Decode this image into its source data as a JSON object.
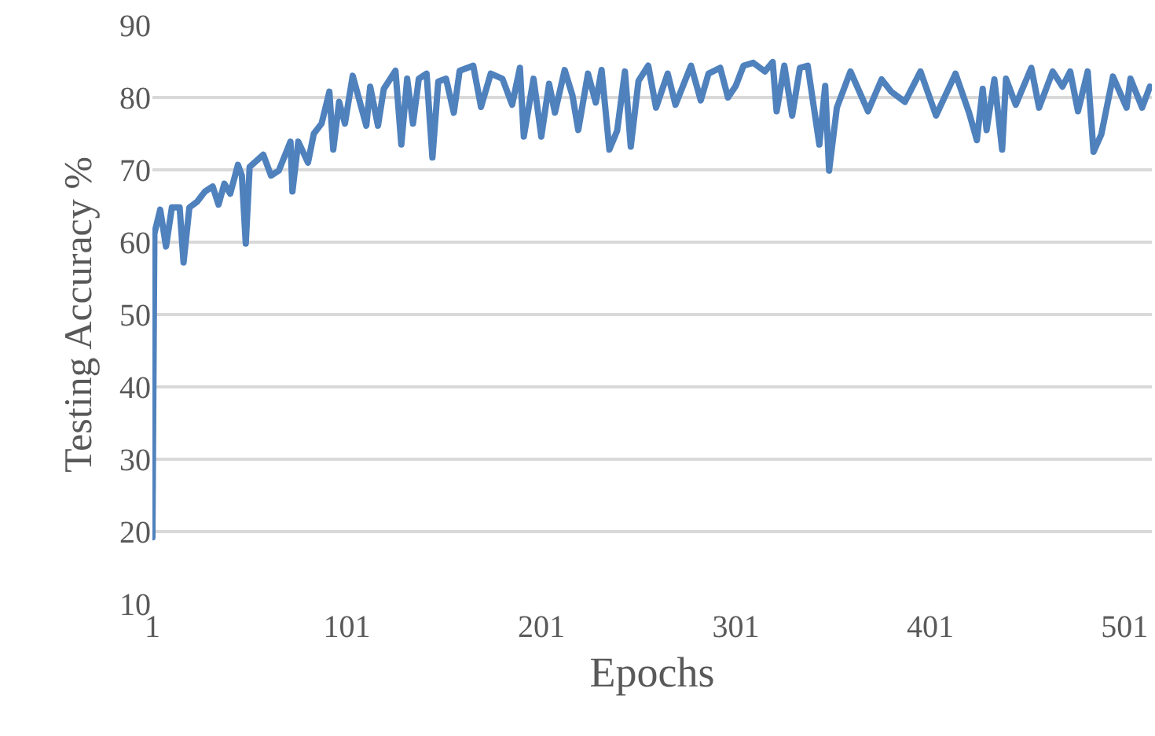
{
  "chart_data": {
    "type": "line",
    "xlabel": "Epochs",
    "ylabel": "Testing Accuracy %",
    "xlim": [
      1,
      515
    ],
    "xticks": [
      1,
      101,
      201,
      301,
      401,
      501
    ],
    "ylim": [
      10,
      90
    ],
    "yticks": [
      10,
      20,
      30,
      40,
      50,
      60,
      70,
      80,
      90
    ],
    "grid": "y",
    "marker": "none",
    "line_style": "solid",
    "series": [
      {
        "color": "#4f81bd",
        "x": [
          1,
          2,
          5,
          8,
          11,
          15,
          17,
          20,
          24,
          28,
          32,
          35,
          38,
          41,
          45,
          47,
          49,
          51,
          58,
          62,
          66,
          72,
          73,
          76,
          81,
          84,
          88,
          92,
          94,
          97,
          100,
          104,
          111,
          113,
          117,
          120,
          126,
          129,
          132,
          135,
          138,
          142,
          145,
          148,
          152,
          156,
          159,
          166,
          170,
          175,
          181,
          186,
          190,
          192,
          197,
          201,
          205,
          208,
          213,
          217,
          220,
          225,
          229,
          232,
          236,
          240,
          244,
          247,
          251,
          256,
          260,
          266,
          270,
          278,
          283,
          287,
          293,
          297,
          301,
          305,
          310,
          316,
          320,
          322,
          326,
          330,
          334,
          338,
          344,
          347,
          349,
          353,
          360,
          369,
          376,
          381,
          388,
          396,
          404,
          414,
          421,
          425,
          428,
          430,
          434,
          438,
          440,
          445,
          453,
          457,
          464,
          469,
          473,
          477,
          482,
          485,
          489,
          495,
          502,
          504,
          510,
          514
        ],
        "values": [
          19.2,
          61.2,
          64.5,
          59.4,
          64.8,
          64.8,
          57.2,
          64.8,
          65.6,
          67.0,
          67.7,
          65.2,
          68.1,
          66.7,
          70.7,
          69.2,
          59.8,
          70.4,
          72.1,
          69.2,
          69.9,
          73.9,
          67.0,
          73.9,
          71.0,
          75.0,
          76.4,
          80.8,
          72.8,
          79.4,
          76.4,
          83.0,
          76.1,
          81.5,
          76.1,
          81.2,
          83.7,
          73.5,
          82.6,
          76.4,
          82.6,
          83.3,
          71.7,
          82.2,
          82.6,
          77.9,
          83.7,
          84.4,
          78.7,
          83.3,
          82.6,
          79.0,
          84.1,
          74.6,
          82.6,
          74.6,
          81.9,
          77.9,
          83.8,
          80.3,
          75.5,
          83.3,
          79.3,
          83.8,
          72.8,
          75.4,
          83.6,
          73.2,
          82.3,
          84.4,
          78.6,
          83.3,
          79.0,
          84.4,
          79.6,
          83.3,
          84.1,
          80.0,
          81.6,
          84.4,
          84.8,
          83.6,
          84.9,
          78.1,
          84.4,
          77.5,
          84.1,
          84.4,
          73.5,
          81.6,
          69.9,
          78.6,
          83.6,
          78.1,
          82.5,
          80.8,
          79.4,
          83.6,
          77.5,
          83.3,
          77.9,
          74.1,
          81.2,
          75.5,
          82.5,
          72.8,
          82.6,
          79.0,
          84.1,
          78.6,
          83.6,
          81.5,
          83.6,
          78.1,
          83.6,
          72.5,
          74.9,
          82.9,
          78.6,
          82.6,
          78.6,
          81.5
        ]
      }
    ]
  }
}
